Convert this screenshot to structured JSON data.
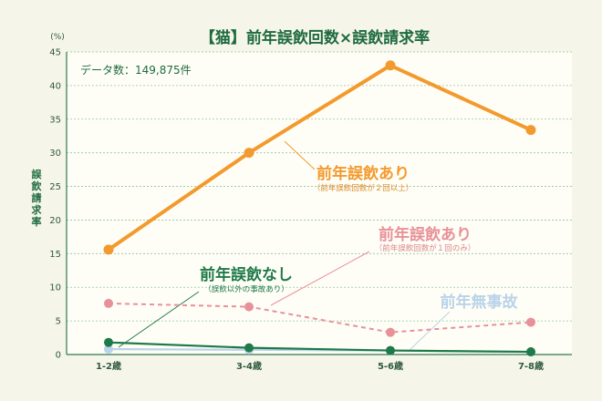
{
  "chart_data": {
    "type": "line",
    "title": "【猫】前年誤飲回数×誤飲請求率",
    "unit": "(%)",
    "ylabel": "誤飲請求率",
    "data_count_label": "データ数：149,875件",
    "categories": [
      "1-2歳",
      "3-4歳",
      "5-6歳",
      "7-8歳"
    ],
    "ylim": [
      0,
      45
    ],
    "yticks": [
      0,
      5,
      10,
      15,
      20,
      25,
      30,
      35,
      40,
      45
    ],
    "grid": true,
    "series": [
      {
        "name": "前年誤飲あり",
        "note": "（前年誤飲回数が２回以上）",
        "values": [
          15.6,
          30.0,
          43.0,
          33.4
        ],
        "color": "#f39a2e",
        "style": "solid"
      },
      {
        "name": "前年誤飲あり",
        "note": "（前年誤飲回数が１回のみ）",
        "values": [
          7.6,
          7.1,
          3.3,
          4.8
        ],
        "color": "#e8919a",
        "style": "dashed"
      },
      {
        "name": "前年誤飲なし",
        "note": "（誤飲以外の事故あり）",
        "values": [
          1.8,
          1.0,
          0.6,
          0.4
        ],
        "color": "#1f7a4a",
        "style": "solid"
      },
      {
        "name": "前年無事故",
        "note": "",
        "values": [
          0.8,
          0.7,
          0.6,
          0.4
        ],
        "color": "#b9d3ea",
        "style": "solid"
      }
    ]
  }
}
